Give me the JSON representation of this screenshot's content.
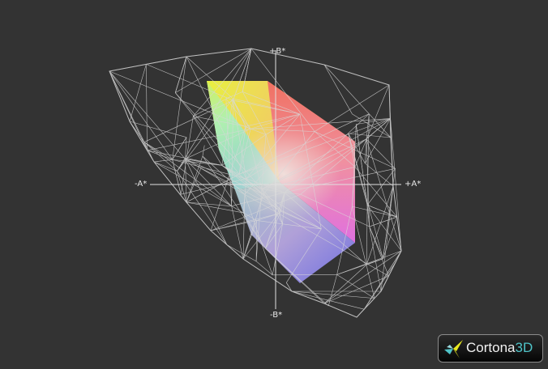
{
  "viewer": {
    "axes": {
      "plus_b": "+B*",
      "minus_b": "-B*",
      "minus_a": "-A*",
      "plus_a": "+A*"
    },
    "logo": {
      "brand": "Cortona",
      "suffix": "3D"
    },
    "colors": {
      "background": "#333333",
      "wireframe": "#d8d8d8",
      "logo_accent": "#4fc3c8"
    }
  }
}
